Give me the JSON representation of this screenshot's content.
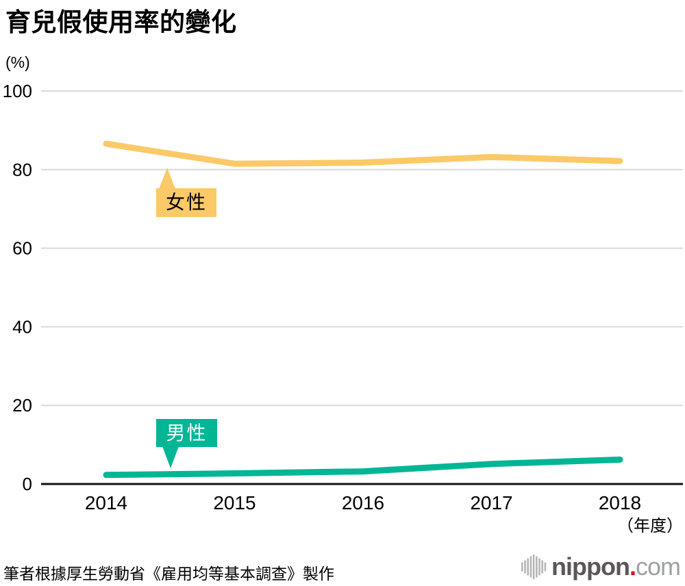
{
  "title": "育兒假使用率的變化",
  "y_unit": "(%)",
  "x_unit": "（年度）",
  "source_note": "筆者根據厚生勞動省《雇用均等基本調查》製作",
  "logo": {
    "icon": "audio-bars-icon",
    "brand": "nippon",
    "dot": ".",
    "suffix": "com",
    "brand_color": "#595757",
    "dot_color": "#e60012",
    "suffix_color": "#9fa0a0"
  },
  "chart_data": {
    "type": "line",
    "title": "育兒假使用率的變化",
    "x": [
      "2014",
      "2015",
      "2016",
      "2017",
      "2018"
    ],
    "xlabel": "年度",
    "ylabel": "%",
    "ylim": [
      0,
      100
    ],
    "yticks": [
      0,
      20,
      40,
      60,
      80,
      100
    ],
    "grid": true,
    "gridcolor": "#d9d9d9",
    "axis_color": "#111111",
    "legend_position": "inline-callouts",
    "series": [
      {
        "id": "female",
        "name": "女性",
        "color": "#fbc968",
        "label_text_color": "#000000",
        "values": [
          86.6,
          81.5,
          81.8,
          83.2,
          82.2
        ]
      },
      {
        "id": "male",
        "name": "男性",
        "color": "#00b695",
        "label_text_color": "#ffffff",
        "values": [
          2.3,
          2.7,
          3.2,
          5.1,
          6.2
        ]
      }
    ]
  }
}
